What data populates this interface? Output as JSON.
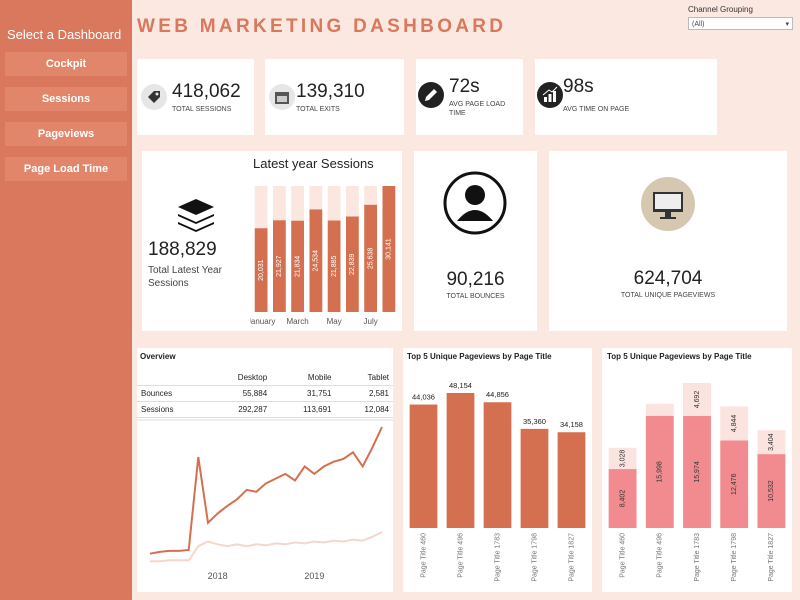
{
  "sidebar": {
    "title": "Select a Dashboard",
    "buttons": [
      "Cockpit",
      "Sessions",
      "Pageviews",
      "Page Load Time"
    ]
  },
  "header": {
    "title": "WEB MARKETING DASHBOARD",
    "filter_label": "Channel Grouping",
    "filter_value": "(All)"
  },
  "kpis": [
    {
      "value": "418,062",
      "label": "TOTAL SESSIONS"
    },
    {
      "value": "139,310",
      "label": "TOTAL EXITS"
    },
    {
      "value": "72s",
      "label": "AVG PAGE LOAD TIME"
    },
    {
      "value": "98s",
      "label": "AVG TIME ON PAGE"
    }
  ],
  "latest_year": {
    "title": "Latest year Sessions",
    "total": "188,829",
    "total_label": "Total Latest Year Sessions",
    "chart": {
      "type": "bar",
      "categories": [
        "January",
        null,
        "March",
        null,
        "May",
        null,
        "July",
        null
      ],
      "values": [
        20031,
        21927,
        21834,
        24534,
        21885,
        22839,
        25638,
        30141
      ],
      "value_labels": [
        "20,031",
        "21,927",
        "21,834",
        "24,534",
        "21,885",
        "22,839",
        "25,638",
        "30,141"
      ],
      "color": "#d4704f",
      "track_color": "#fbe6e0"
    }
  },
  "bounces": {
    "value": "90,216",
    "label": "TOTAL BOUNCES"
  },
  "unique_pageviews": {
    "value": "624,704",
    "label": "TOTAL UNIQUE PAGEVIEWS"
  },
  "overview": {
    "title": "Overview",
    "columns": [
      "Desktop",
      "Mobile",
      "Tablet"
    ],
    "rows": [
      {
        "label": "Bounces",
        "cells": [
          "55,884",
          "31,751",
          "2,581"
        ]
      },
      {
        "label": "Sessions",
        "cells": [
          "292,287",
          "113,691",
          "12,084"
        ]
      }
    ],
    "chart": {
      "type": "line",
      "categories": [
        null,
        null,
        null,
        null,
        null,
        null,
        null,
        "2018",
        null,
        null,
        null,
        null,
        null,
        null,
        null,
        null,
        null,
        "2019",
        null,
        null,
        null,
        null,
        null,
        null,
        null
      ],
      "series": [
        {
          "color": "#d4704f",
          "values": [
            12,
            14,
            15,
            15,
            16,
            115,
            45,
            55,
            63,
            70,
            80,
            78,
            87,
            92,
            97,
            90,
            105,
            97,
            105,
            110,
            113,
            120,
            105,
            125,
            147
          ]
        },
        {
          "color": "#f6d6cc",
          "values": [
            4,
            4,
            5,
            5,
            5,
            20,
            25,
            22,
            20,
            22,
            20,
            22,
            21,
            23,
            22,
            24,
            23,
            25,
            24,
            26,
            25,
            27,
            26,
            30,
            35
          ]
        }
      ]
    }
  },
  "top_pages": {
    "title": "Top 5 Unique Pageviews by Page Title",
    "chart": {
      "type": "bar",
      "categories": [
        "Page Title 460",
        "Page Title 496",
        "Page Title 1783",
        "Page Title 1798",
        "Page Title 1827"
      ],
      "values": [
        44036,
        48154,
        44856,
        35360,
        34158
      ],
      "value_labels": [
        "44,036",
        "48,154",
        "44,856",
        "35,360",
        "34,158"
      ],
      "color": "#d4704f"
    }
  },
  "top_pages_stacked": {
    "title": "Top 5 Unique Pageviews by Page Title",
    "chart": {
      "type": "stacked_bar",
      "categories": [
        "Page Title 460",
        "Page Title 496",
        "Page Title 1783",
        "Page Title 1798",
        "Page Title 1827"
      ],
      "series": [
        {
          "color": "#f28b8f",
          "values": [
            8402,
            15998,
            15974,
            12476,
            10532
          ],
          "value_labels": [
            "8,402",
            "15,998",
            "15,974",
            "12,476",
            "10,532"
          ]
        },
        {
          "color": "#fbe3df",
          "values": [
            3028,
            1700,
            4692,
            4844,
            3404
          ],
          "value_labels": [
            "3,028",
            null,
            "4,692",
            "4,844",
            "3,404"
          ]
        }
      ]
    }
  }
}
